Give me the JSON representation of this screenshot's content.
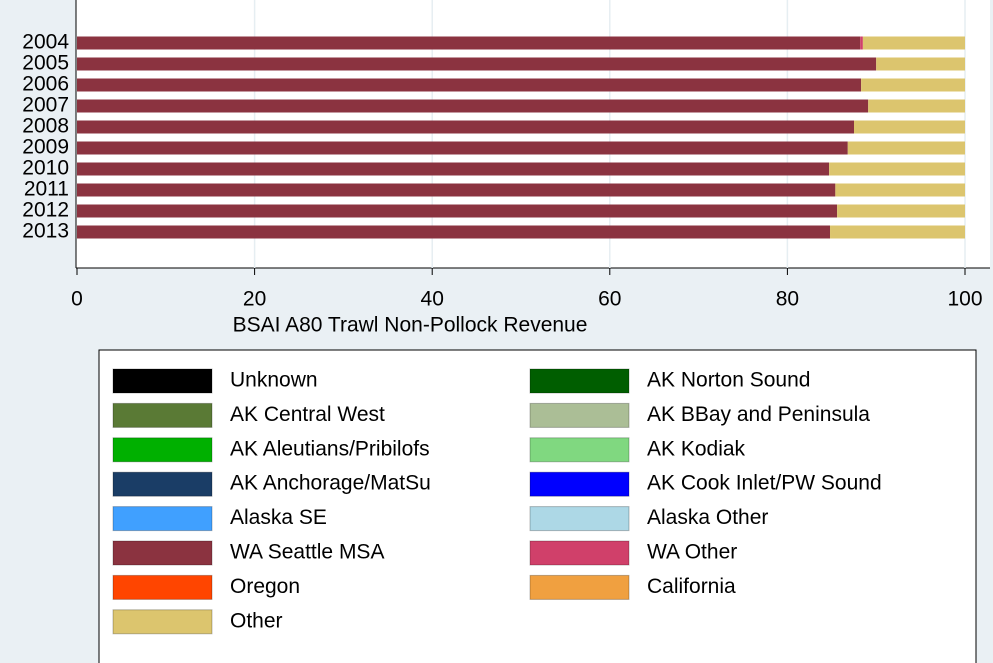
{
  "chart_data": {
    "type": "stacked_barh",
    "x_label": "BSAI A80 Trawl Non-Pollock Revenue",
    "categories": [
      "2004",
      "2005",
      "2006",
      "2007",
      "2008",
      "2009",
      "2010",
      "2011",
      "2012",
      "2013"
    ],
    "xlim": [
      0,
      102.8
    ],
    "xticks": [
      0,
      20,
      40,
      60,
      80,
      100
    ],
    "grid": true,
    "series": [
      {
        "name": "Unknown",
        "color": "#000000",
        "values": [
          0,
          0,
          0,
          0,
          0,
          0,
          0,
          0,
          0,
          0
        ]
      },
      {
        "name": "AK Norton Sound",
        "color": "#005e00",
        "values": [
          0,
          0,
          0,
          0,
          0,
          0,
          0,
          0,
          0,
          0
        ]
      },
      {
        "name": "AK Central West",
        "color": "#5a7a35",
        "values": [
          0,
          0,
          0,
          0,
          0,
          0,
          0,
          0,
          0,
          0
        ]
      },
      {
        "name": "AK BBay and Peninsula",
        "color": "#abbe96",
        "values": [
          0,
          0,
          0,
          0,
          0,
          0,
          0,
          0,
          0,
          0
        ]
      },
      {
        "name": "AK Aleutians/Pribilofs",
        "color": "#00b000",
        "values": [
          0,
          0,
          0,
          0,
          0,
          0,
          0,
          0,
          0,
          0
        ]
      },
      {
        "name": "AK Kodiak",
        "color": "#80d880",
        "values": [
          0,
          0,
          0,
          0,
          0,
          0,
          0,
          0,
          0,
          0
        ]
      },
      {
        "name": "AK Anchorage/MatSu",
        "color": "#1a3d66",
        "values": [
          0,
          0,
          0,
          0,
          0,
          0,
          0,
          0,
          0,
          0
        ]
      },
      {
        "name": "AK Cook Inlet/PW Sound",
        "color": "#0000ff",
        "values": [
          0,
          0,
          0,
          0,
          0,
          0,
          0,
          0,
          0,
          0
        ]
      },
      {
        "name": "Alaska SE",
        "color": "#40a0ff",
        "values": [
          0,
          0,
          0,
          0,
          0,
          0,
          0,
          0,
          0,
          0
        ]
      },
      {
        "name": "Alaska Other",
        "color": "#add8e6",
        "values": [
          0,
          0,
          0,
          0,
          0,
          0,
          0,
          0,
          0,
          0
        ]
      },
      {
        "name": "WA Seattle MSA",
        "color": "#8b3340",
        "values": [
          88.2,
          90.0,
          88.3,
          89.1,
          87.5,
          86.8,
          84.7,
          85.4,
          85.6,
          84.8
        ]
      },
      {
        "name": "WA Other",
        "color": "#d0406a",
        "values": [
          0.3,
          0,
          0,
          0,
          0,
          0,
          0,
          0,
          0,
          0
        ]
      },
      {
        "name": "Oregon",
        "color": "#ff4500",
        "values": [
          0,
          0,
          0,
          0,
          0,
          0,
          0,
          0,
          0,
          0
        ]
      },
      {
        "name": "California",
        "color": "#f0a040",
        "values": [
          0,
          0,
          0,
          0,
          0,
          0,
          0,
          0,
          0,
          0
        ]
      },
      {
        "name": "Other",
        "color": "#dcc56e",
        "values": [
          11.5,
          10.0,
          11.7,
          10.9,
          12.5,
          13.2,
          15.3,
          14.6,
          14.4,
          15.2
        ]
      }
    ]
  }
}
